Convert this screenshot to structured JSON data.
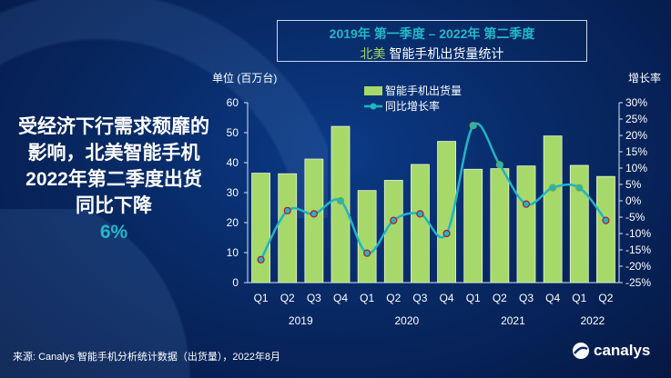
{
  "title_line1": "2019年 第一季度 – 2022年 第二季度",
  "title_region": "北美",
  "title_line2": "智能手机出货量统计",
  "side_text": "受经济下行需求颓靡的影响，北美智能手机2022年第二季度出货同比下降",
  "side_pct": "6%",
  "source": "来源: Canalys 智能手机分析统计数据（出货量），2022年8月",
  "logo": "canalys",
  "chart_data": {
    "type": "bar",
    "title": "2019年 第一季度 – 2022年 第二季度 北美 智能手机出货量统计",
    "categories": [
      "Q1",
      "Q2",
      "Q3",
      "Q4",
      "Q1",
      "Q2",
      "Q3",
      "Q4",
      "Q1",
      "Q2",
      "Q3",
      "Q4",
      "Q1",
      "Q2"
    ],
    "years": [
      {
        "label": "2019",
        "from": 0,
        "to": 3
      },
      {
        "label": "2020",
        "from": 4,
        "to": 7
      },
      {
        "label": "2021",
        "from": 8,
        "to": 11
      },
      {
        "label": "2022",
        "from": 12,
        "to": 13
      }
    ],
    "ylabel": "单位 (百万台)",
    "y2label": "增长率",
    "ylim": [
      0,
      60
    ],
    "yticks": [
      0,
      10,
      20,
      30,
      40,
      50,
      60
    ],
    "y2lim": [
      -25,
      30
    ],
    "y2ticks": [
      -25,
      -20,
      -15,
      -10,
      -5,
      0,
      5,
      10,
      15,
      20,
      25,
      30
    ],
    "legend_placement": "top-center",
    "series": [
      {
        "name": "智能手机出货量",
        "type": "bar",
        "axis": "left",
        "color": "#a6d96a",
        "values": [
          36.5,
          36.3,
          41.2,
          52.1,
          30.7,
          34.1,
          39.4,
          47.1,
          37.8,
          38.0,
          38.9,
          48.9,
          39.1,
          35.4
        ]
      },
      {
        "name": "同比增长率",
        "type": "line",
        "axis": "right",
        "unit": "%",
        "color": "#1fb5c4",
        "values": [
          -18,
          -3,
          -4,
          0,
          -16,
          -6,
          -4,
          -10,
          23,
          11,
          -1,
          4,
          4,
          -6
        ]
      }
    ]
  }
}
